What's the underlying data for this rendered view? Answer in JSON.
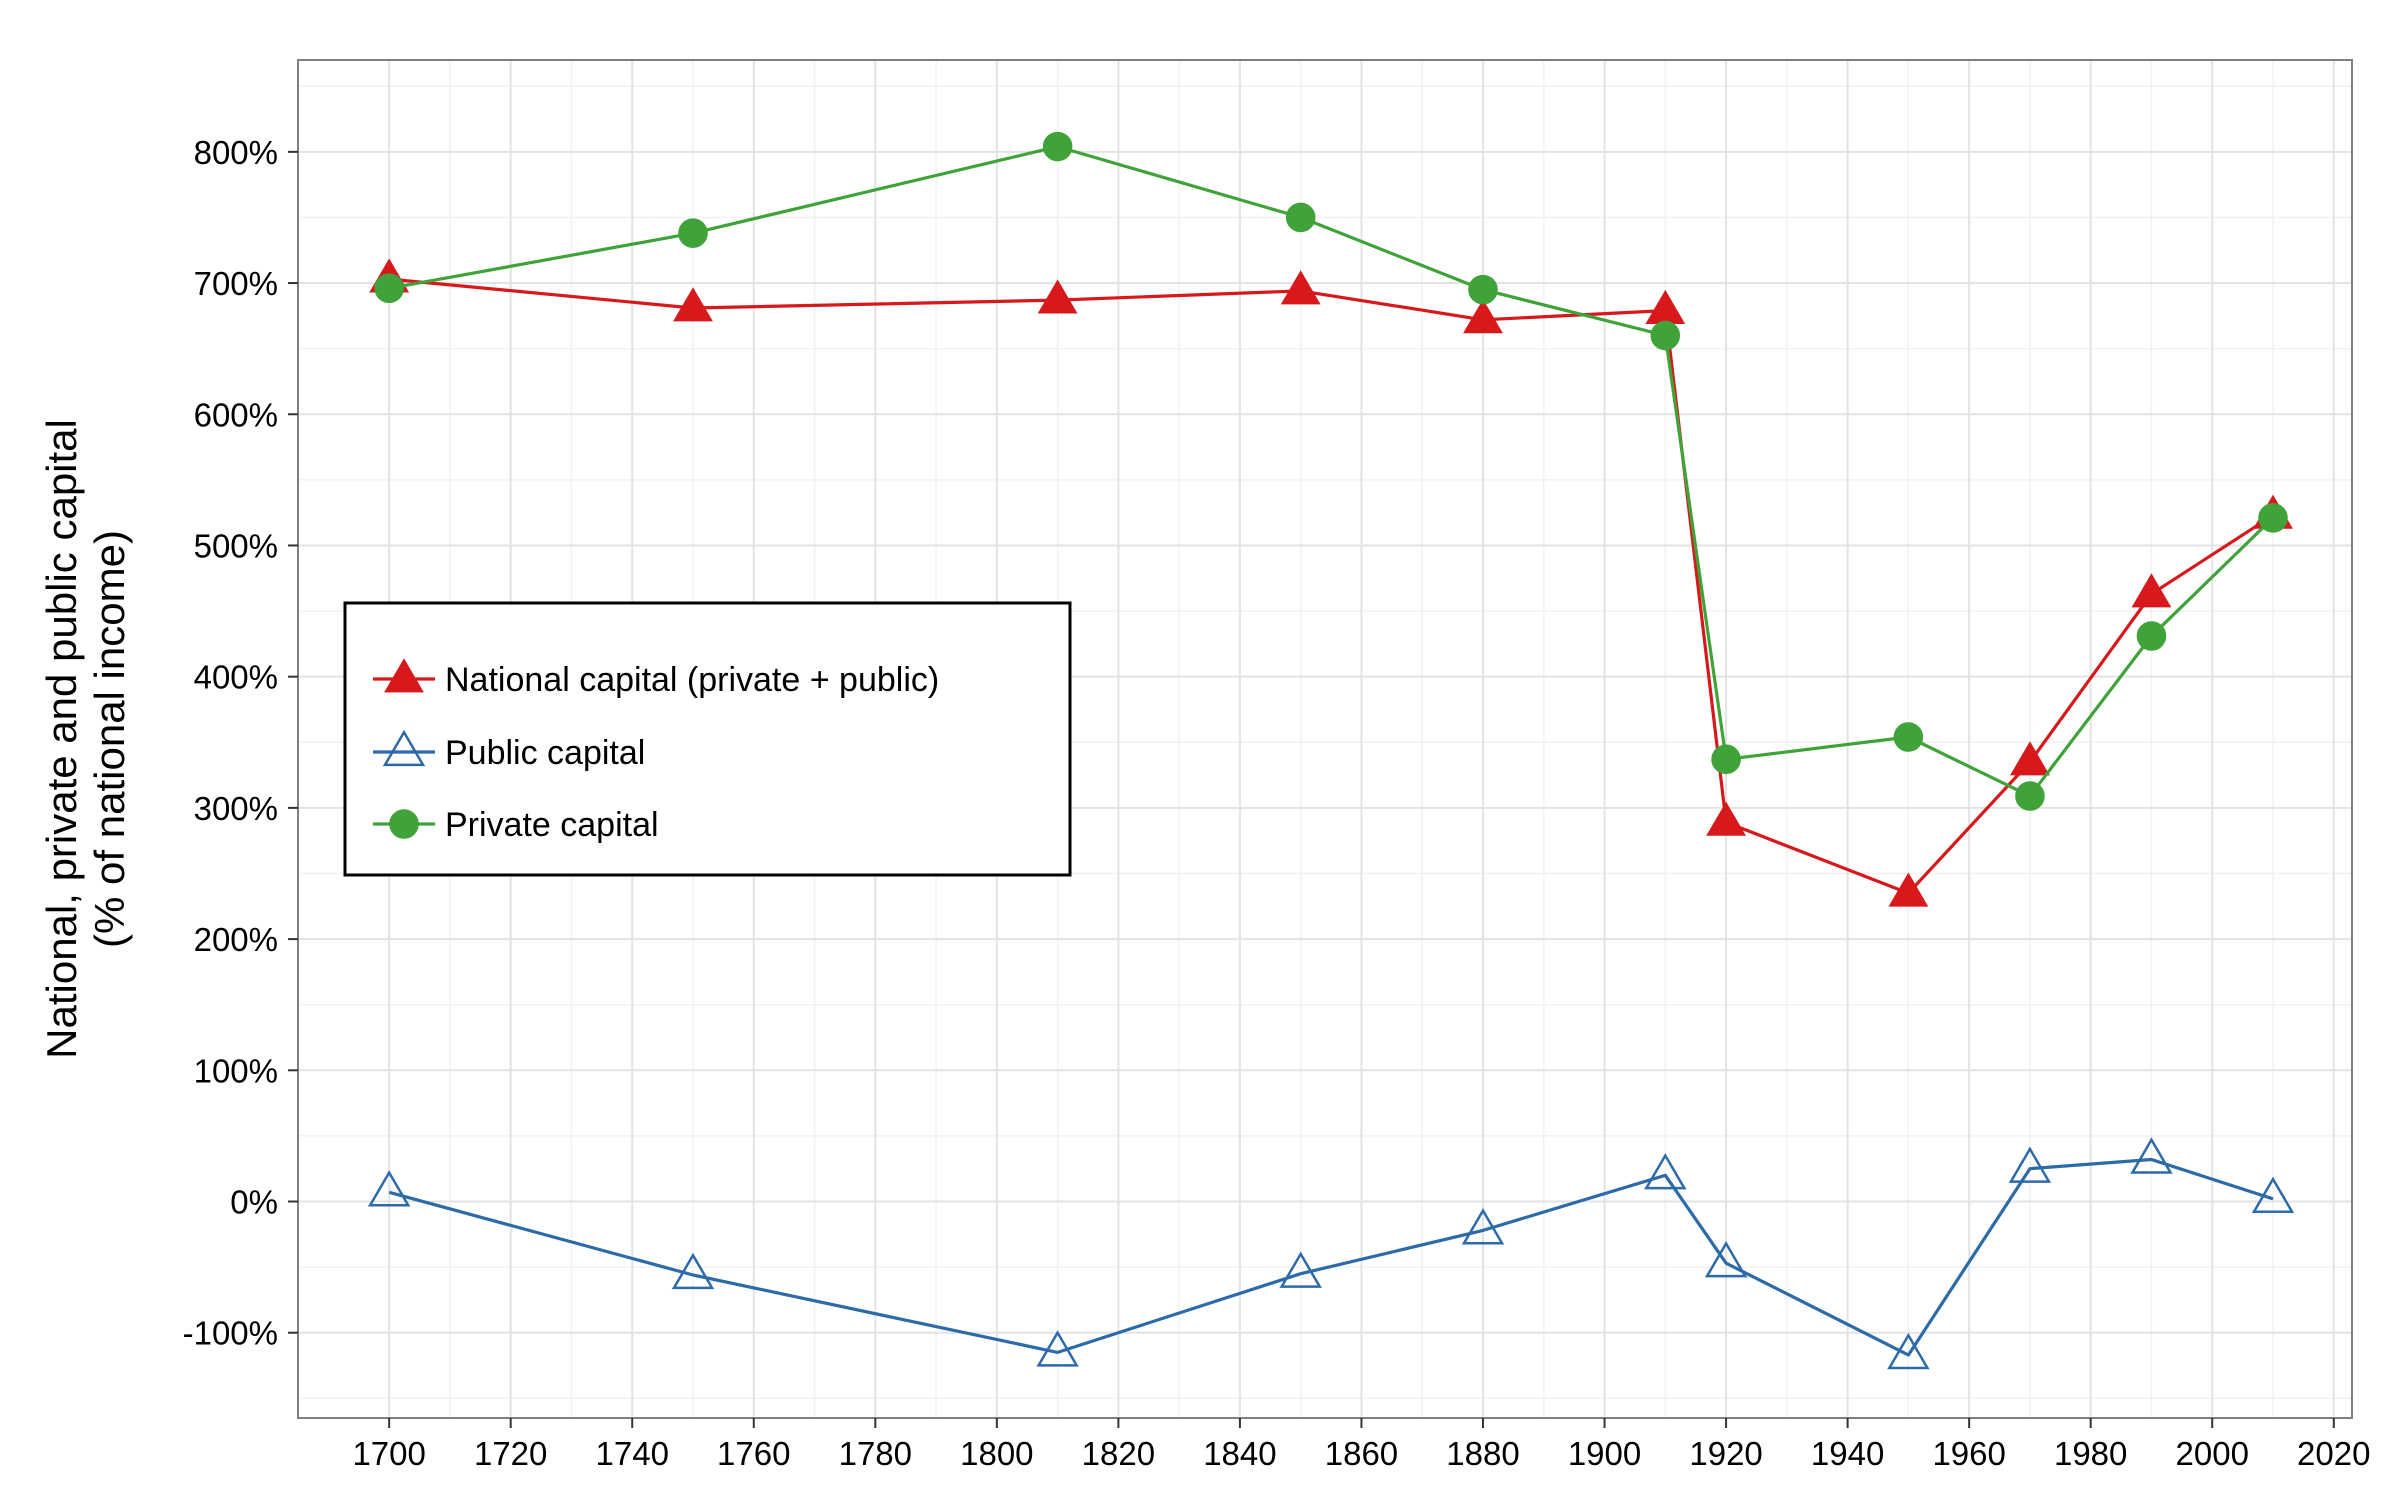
{
  "chart_data": {
    "type": "line",
    "ylabel": [
      "National, private and public capital",
      "(% of national income)"
    ],
    "xlabel": "",
    "xlim": [
      1685,
      2023
    ],
    "ylim": [
      -165,
      870
    ],
    "x_ticks": [
      1700,
      1720,
      1740,
      1760,
      1780,
      1800,
      1820,
      1840,
      1860,
      1880,
      1900,
      1920,
      1940,
      1960,
      1980,
      2000,
      2020
    ],
    "y_ticks": [
      -100,
      0,
      100,
      200,
      300,
      400,
      500,
      600,
      700,
      800
    ],
    "y_tick_labels": [
      "-100%",
      "0%",
      "100%",
      "200%",
      "300%",
      "400%",
      "500%",
      "600%",
      "700%",
      "800%"
    ],
    "grid": true,
    "legend_position": "left-center",
    "series": [
      {
        "name": "National capital (private + public)",
        "color": "#d7191c",
        "marker": "filled-triangle",
        "x": [
          1700,
          1750,
          1810,
          1850,
          1880,
          1910,
          1920,
          1950,
          1970,
          1990,
          2010
        ],
        "y": [
          703,
          681,
          687,
          694,
          672,
          679,
          289,
          235,
          335,
          463,
          523
        ]
      },
      {
        "name": "Public capital",
        "color": "#2c6aa8",
        "marker": "open-triangle",
        "x": [
          1700,
          1750,
          1810,
          1850,
          1880,
          1910,
          1920,
          1950,
          1970,
          1990,
          2010
        ],
        "y": [
          7,
          -56,
          -115,
          -55,
          -22,
          20,
          -47,
          -117,
          25,
          32,
          2
        ]
      },
      {
        "name": "Private capital",
        "color": "#3fa33a",
        "marker": "filled-circle",
        "x": [
          1700,
          1750,
          1810,
          1850,
          1880,
          1910,
          1920,
          1950,
          1970,
          1990,
          2010
        ],
        "y": [
          696,
          738,
          804,
          750,
          695,
          660,
          337,
          354,
          309,
          431,
          521
        ]
      }
    ]
  }
}
